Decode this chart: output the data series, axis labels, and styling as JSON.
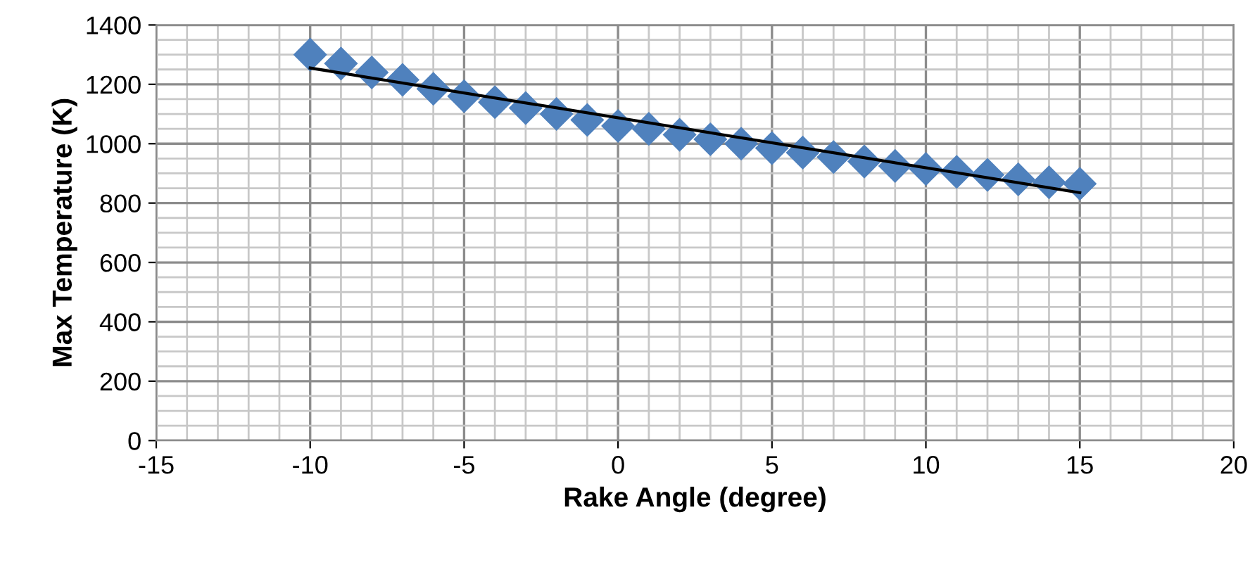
{
  "chart_data": {
    "type": "scatter",
    "xlabel": "Rake Angle (degree)",
    "ylabel": "Max Temperature (K)",
    "xlim": [
      -15,
      20
    ],
    "xticks": [
      -15,
      -10,
      -5,
      0,
      5,
      10,
      15,
      20
    ],
    "ylim": [
      0,
      1400
    ],
    "yticks": [
      0,
      200,
      400,
      600,
      800,
      1000,
      1200,
      1400
    ],
    "grid": true,
    "legend": false,
    "series": [
      {
        "marker": "diamond",
        "color": "#4f81bd",
        "x": [
          -10,
          -9,
          -8,
          -7,
          -6,
          -5,
          -4,
          -3,
          -2,
          -1,
          0,
          1,
          2,
          3,
          4,
          5,
          6,
          7,
          8,
          9,
          10,
          11,
          12,
          13,
          14,
          15
        ],
        "values": [
          1300,
          1270,
          1240,
          1215,
          1185,
          1160,
          1140,
          1120,
          1100,
          1080,
          1060,
          1050,
          1030,
          1015,
          1000,
          985,
          970,
          955,
          940,
          925,
          915,
          905,
          895,
          880,
          870,
          865
        ]
      },
      {
        "type": "line",
        "marker": "none",
        "color": "#000000",
        "x": [
          -10,
          15
        ],
        "values": [
          1255,
          835
        ]
      }
    ]
  }
}
